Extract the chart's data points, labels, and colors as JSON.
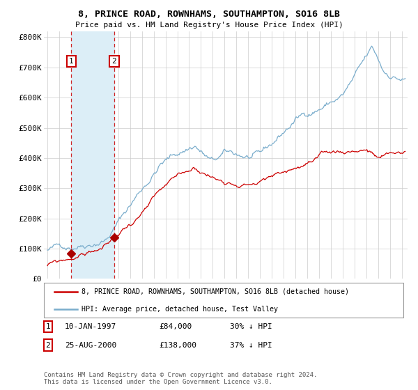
{
  "title": "8, PRINCE ROAD, ROWNHAMS, SOUTHAMPTON, SO16 8LB",
  "subtitle": "Price paid vs. HM Land Registry's House Price Index (HPI)",
  "ylabel_ticks": [
    "£0",
    "£100K",
    "£200K",
    "£300K",
    "£400K",
    "£500K",
    "£600K",
    "£700K",
    "£800K"
  ],
  "ytick_vals": [
    0,
    100000,
    200000,
    300000,
    400000,
    500000,
    600000,
    700000,
    800000
  ],
  "ylim": [
    0,
    820000
  ],
  "xlim_start": 1994.7,
  "xlim_end": 2025.5,
  "sale1": {
    "date_num": 1997.03,
    "price": 84000,
    "label": "1",
    "date_str": "10-JAN-1997",
    "pct": "30% ↓ HPI"
  },
  "sale2": {
    "date_num": 2000.65,
    "price": 138000,
    "label": "2",
    "date_str": "25-AUG-2000",
    "pct": "37% ↓ HPI"
  },
  "legend_red": "8, PRINCE ROAD, ROWNHAMS, SOUTHAMPTON, SO16 8LB (detached house)",
  "legend_blue": "HPI: Average price, detached house, Test Valley",
  "footnote": "Contains HM Land Registry data © Crown copyright and database right 2024.\nThis data is licensed under the Open Government Licence v3.0.",
  "red_color": "#cc0000",
  "blue_color": "#7aadcc",
  "shade_color": "#dceef7",
  "grid_color": "#cccccc",
  "bg_color": "#ffffff",
  "sale_marker_color": "#aa0000",
  "box_color": "#cc0000"
}
